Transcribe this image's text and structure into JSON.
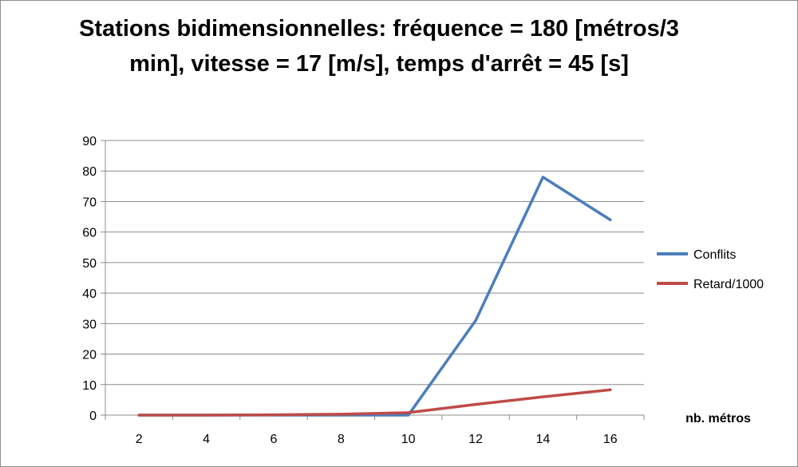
{
  "chart_data": {
    "type": "line",
    "title_line1": "Stations bidimensionnelles: fréquence = 180 [métros/3",
    "title_line2": "min], vitesse = 17 [m/s], temps d'arrêt = 45 [s]",
    "xlabel": "nb. métros",
    "ylabel": "",
    "x": [
      2,
      4,
      6,
      8,
      10,
      12,
      14,
      16
    ],
    "x_ticks": [
      "2",
      "4",
      "6",
      "8",
      "10",
      "12",
      "14",
      "16"
    ],
    "ylim": [
      0,
      90
    ],
    "y_ticks": [
      "0",
      "10",
      "20",
      "30",
      "40",
      "50",
      "60",
      "70",
      "80",
      "90"
    ],
    "grid": true,
    "legend_position": "right",
    "series": [
      {
        "name": "Conflits",
        "color": "#4a7ebb",
        "values": [
          0,
          0,
          0,
          0,
          0,
          31,
          78,
          64
        ]
      },
      {
        "name": "Retard/1000",
        "color": "#be4b48",
        "values": [
          0,
          0,
          0.1,
          0.3,
          0.8,
          3.5,
          6,
          8.3
        ]
      }
    ]
  }
}
